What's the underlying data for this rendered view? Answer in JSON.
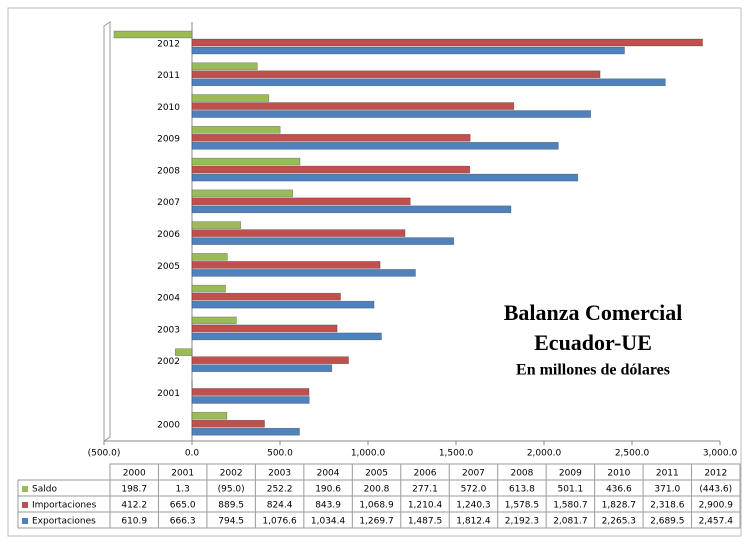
{
  "chart_data": {
    "type": "bar",
    "orientation": "horizontal",
    "title": "Balanza Comercial",
    "subtitle": "Ecuador-UE",
    "annotation": "En millones de dólares",
    "categories": [
      "2000",
      "2001",
      "2002",
      "2003",
      "2004",
      "2005",
      "2006",
      "2007",
      "2008",
      "2009",
      "2010",
      "2011",
      "2012"
    ],
    "series": [
      {
        "name": "Saldo",
        "color": "#9bbb59",
        "values": [
          198.7,
          1.3,
          -95.0,
          252.2,
          190.6,
          200.8,
          277.1,
          572.0,
          613.8,
          501.1,
          436.6,
          371.0,
          -443.6
        ],
        "value_labels": [
          "198.7",
          "1.3",
          "(95.0)",
          "252.2",
          "190.6",
          "200.8",
          "277.1",
          "572.0",
          "613.8",
          "501.1",
          "436.6",
          "371.0",
          "(443.6)"
        ]
      },
      {
        "name": "Importaciones",
        "color": "#c0504d",
        "values": [
          412.2,
          665.0,
          889.5,
          824.4,
          843.9,
          1068.9,
          1210.4,
          1240.3,
          1578.5,
          1580.7,
          1828.7,
          2318.6,
          2900.9
        ],
        "value_labels": [
          "412.2",
          "665.0",
          "889.5",
          "824.4",
          "843.9",
          "1,068.9",
          "1,210.4",
          "1,240.3",
          "1,578.5",
          "1,580.7",
          "1,828.7",
          "2,318.6",
          "2,900.9"
        ]
      },
      {
        "name": "Exportaciones",
        "color": "#4f81bd",
        "values": [
          610.9,
          666.3,
          794.5,
          1076.6,
          1034.4,
          1269.7,
          1487.5,
          1812.4,
          2192.3,
          2081.7,
          2265.3,
          2689.5,
          2457.4
        ],
        "value_labels": [
          "610.9",
          "666.3",
          "794.5",
          "1,076.6",
          "1,034.4",
          "1,269.7",
          "1,487.5",
          "1,812.4",
          "2,192.3",
          "2,081.7",
          "2,265.3",
          "2,689.5",
          "2,457.4"
        ]
      }
    ],
    "xlim": [
      -500,
      3000
    ],
    "xticks": [
      {
        "value": -500,
        "label": "(500.0)"
      },
      {
        "value": 0,
        "label": "0.0"
      },
      {
        "value": 500,
        "label": "500.0"
      },
      {
        "value": 1000,
        "label": "1,000.0"
      },
      {
        "value": 1500,
        "label": "1,500.0"
      },
      {
        "value": 2000,
        "label": "2,000.0"
      },
      {
        "value": 2500,
        "label": "2,500.0"
      },
      {
        "value": 3000,
        "label": "3,000.0"
      }
    ],
    "grid": false,
    "data_table": true
  }
}
